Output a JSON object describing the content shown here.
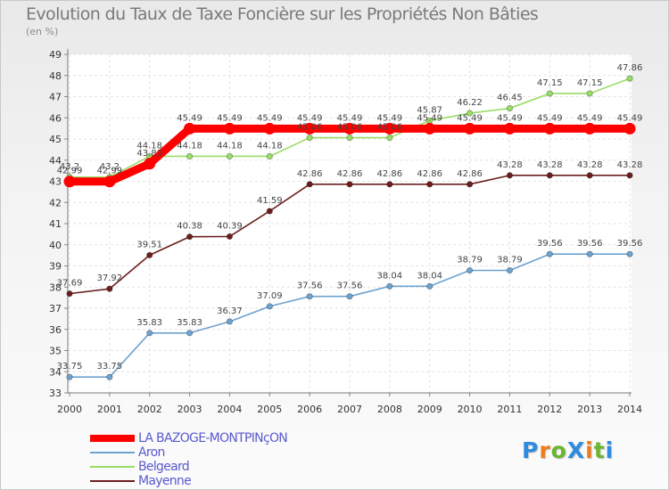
{
  "chart_data": {
    "type": "line",
    "title": "Evolution du Taux de Taxe Foncière sur les Propriétés Non Bâties",
    "subtitle": "(en %)",
    "x": [
      2000,
      2001,
      2002,
      2003,
      2004,
      2005,
      2006,
      2007,
      2008,
      2009,
      2010,
      2011,
      2012,
      2013,
      2014
    ],
    "ylim": [
      33,
      49
    ],
    "yticks": [
      33,
      34,
      35,
      36,
      37,
      38,
      39,
      40,
      41,
      42,
      43,
      44,
      45,
      46,
      47,
      48,
      49
    ],
    "grid": true,
    "legend_position": "bottom-left",
    "series": [
      {
        "name": "LA BAZOGE-MONTPINçON",
        "color": "#ff0000",
        "values": [
          42.99,
          42.99,
          43.83,
          45.49,
          45.49,
          45.49,
          45.49,
          45.49,
          45.49,
          45.49,
          45.49,
          45.49,
          45.49,
          45.49,
          45.49
        ],
        "labels": [
          "42.99",
          "42.99",
          "43.83",
          "45.49",
          "45.49",
          "45.49",
          "45.49",
          "45.49",
          "45.49",
          "45.49",
          "45.49",
          "45.49",
          "45.49",
          "45.49",
          "45.49"
        ]
      },
      {
        "name": "Aron",
        "color": "#6ea2cf",
        "values": [
          33.75,
          33.75,
          35.83,
          35.83,
          36.37,
          37.09,
          37.56,
          37.56,
          38.04,
          38.04,
          38.79,
          38.79,
          39.56,
          39.56,
          39.56
        ],
        "labels": [
          "33.75",
          "33.75",
          "35.83",
          "35.83",
          "36.37",
          "37.09",
          "37.56",
          "37.56",
          "38.04",
          "38.04",
          "38.79",
          "38.79",
          "39.56",
          "39.56",
          "39.56"
        ]
      },
      {
        "name": "Belgeard",
        "color": "#99dd66",
        "values": [
          43.2,
          43.2,
          44.18,
          44.18,
          44.18,
          44.18,
          45.06,
          45.06,
          45.06,
          45.87,
          46.22,
          46.45,
          47.15,
          47.15,
          47.86
        ],
        "labels": [
          "43.2",
          "43.2",
          "44.18",
          "44.18",
          "44.18",
          "44.18",
          "45.06",
          "45.06",
          "45.06",
          "45.87",
          "46.22",
          "46.45",
          "47.15",
          "47.15",
          "47.86"
        ]
      },
      {
        "name": "Mayenne",
        "color": "#6b1e1e",
        "values": [
          37.69,
          37.92,
          39.51,
          40.38,
          40.39,
          41.59,
          42.86,
          42.86,
          42.86,
          42.86,
          42.86,
          43.28,
          43.28,
          43.28,
          43.28
        ],
        "labels": [
          "37.69",
          "37.92",
          "39.51",
          "40.38",
          "40.39",
          "41.59",
          "42.86",
          "42.86",
          "42.86",
          "42.86",
          "42.86",
          "43.28",
          "43.28",
          "43.28",
          "43.28"
        ]
      }
    ]
  },
  "branding": {
    "logo_text": "ProXiti",
    "logo_letters": [
      "P",
      "r",
      "o",
      "X",
      "i",
      "t",
      "i"
    ],
    "logo_colors": [
      "#2e8be0",
      "#ee7b1c",
      "#6ab62f",
      "#2e8be0",
      "#ee7b1c",
      "#6ab62f",
      "#2e8be0"
    ]
  }
}
